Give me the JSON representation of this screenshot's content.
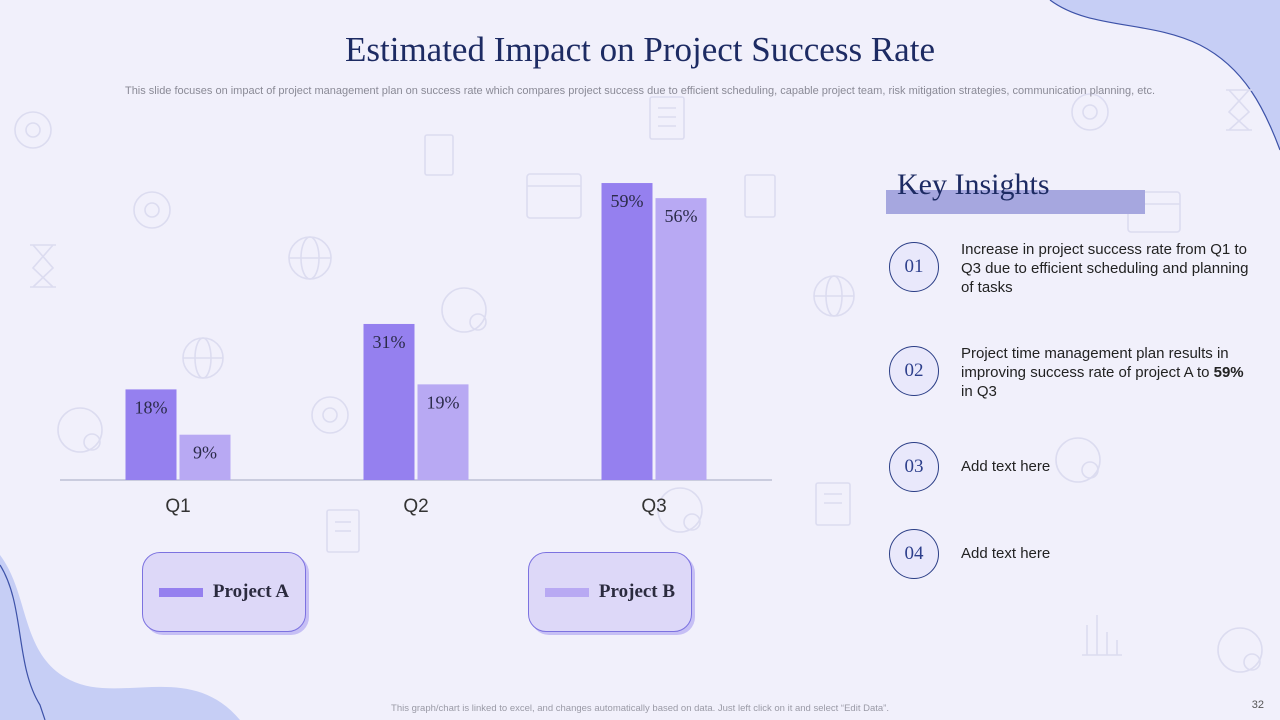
{
  "slide": {
    "title": "Estimated Impact on Project Success Rate",
    "subtitle": "This slide focuses on impact of project management plan on success rate which compares project success due to efficient scheduling, capable project team, risk mitigation strategies, communication planning, etc.",
    "footer_note": "This graph/chart is linked to excel, and changes automatically based on data. Just left click on it and select “Edit Data”.",
    "page_number": "32"
  },
  "colors": {
    "background": "#f1f0fb",
    "title": "#1d2b63",
    "project_a": "#9580ef",
    "project_b": "#b8a9f3",
    "accent_shape": "#c6cef5"
  },
  "chart_data": {
    "type": "bar",
    "categories": [
      "Q1",
      "Q2",
      "Q3"
    ],
    "series": [
      {
        "name": "Project A",
        "values": [
          18,
          31,
          59
        ],
        "labels": [
          "18%",
          "31%",
          "59%"
        ],
        "color": "#9580ef"
      },
      {
        "name": "Project B",
        "values": [
          9,
          19,
          56
        ],
        "labels": [
          "9%",
          "19%",
          "56%"
        ],
        "color": "#b8a9f3"
      }
    ],
    "ylim": [
      0,
      60
    ],
    "grid": false,
    "legend_placement": "bottom"
  },
  "legend": {
    "project_a_label": "Project A",
    "project_b_label": "Project B"
  },
  "insights": {
    "heading": "Key Insights",
    "items": [
      {
        "number": "01",
        "text": "Increase in project success rate from Q1 to Q3 due to efficient scheduling and planning of tasks"
      },
      {
        "number": "02",
        "text_before": "Project time management plan results in improving success rate of project A to ",
        "text_bold": "59%",
        "text_after": " in Q3"
      },
      {
        "number": "03",
        "text": "Add text here"
      },
      {
        "number": "04",
        "text": "Add text here"
      }
    ]
  }
}
